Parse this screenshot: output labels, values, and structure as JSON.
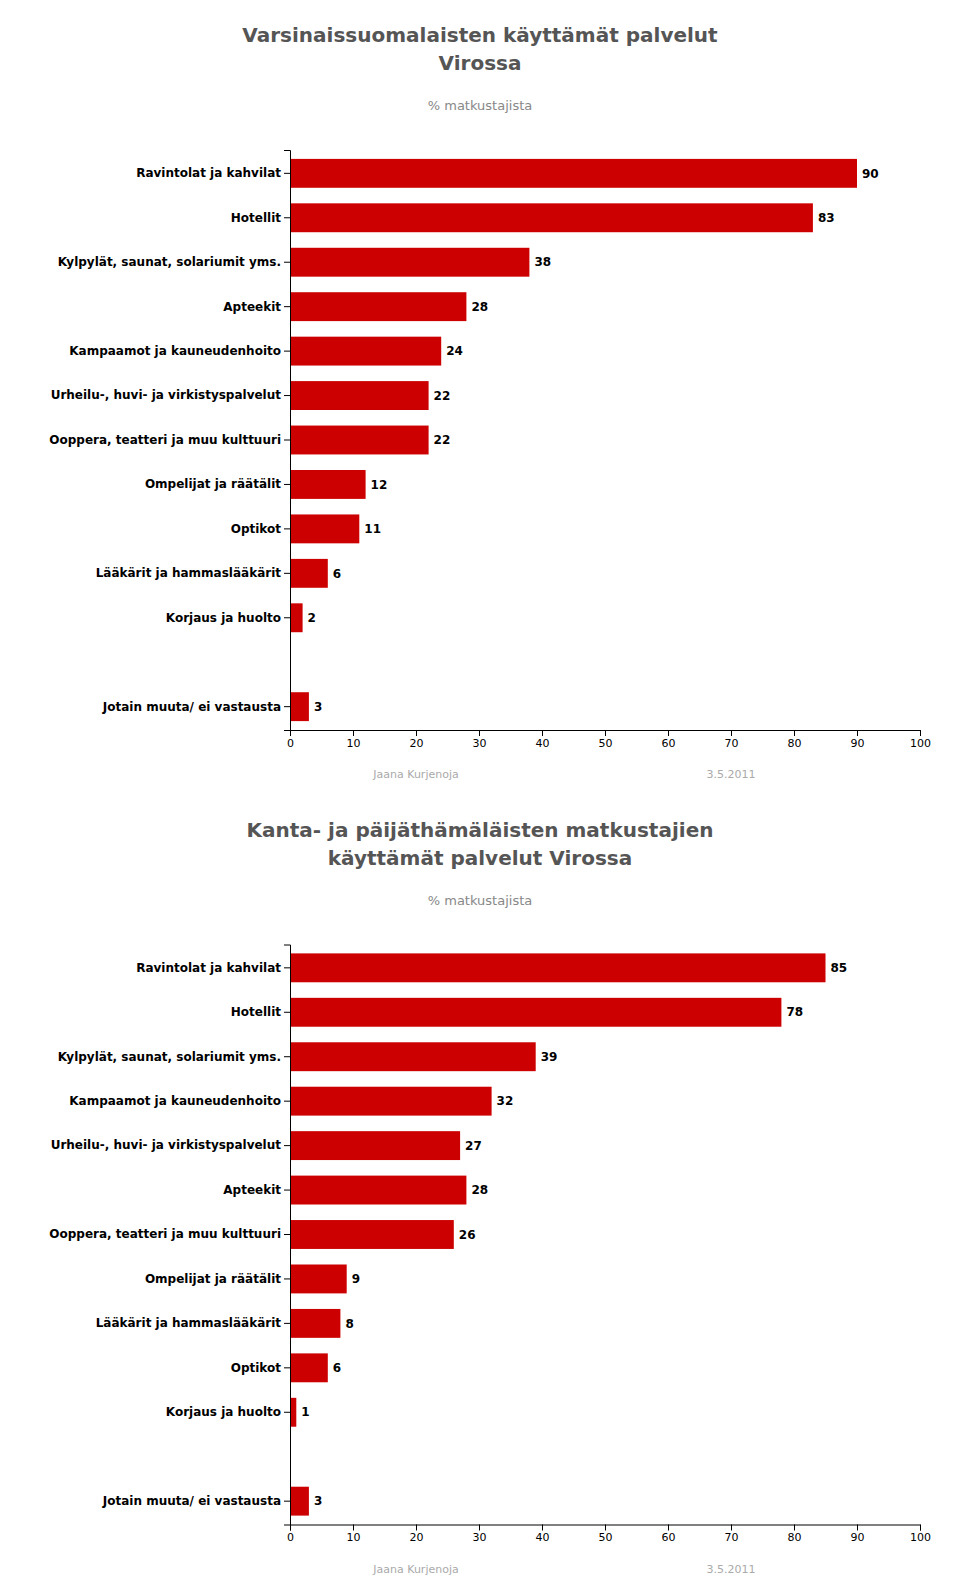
{
  "chart_data": [
    {
      "type": "bar",
      "orientation": "horizontal",
      "title": [
        "Varsinaissuomalaisten käyttämät palvelut",
        "Virossa"
      ],
      "subtitle": "% matkustajista",
      "categories": [
        "Ravintolat ja kahvilat",
        "Hotellit",
        "Kylpylät, saunat, solariumit yms.",
        "Apteekit",
        "Kampaamot ja kauneudenhoito",
        "Urheilu-, huvi- ja virkistyspalvelut",
        "Ooppera, teatteri ja muu kulttuuri",
        "Ompelijat ja räätälit",
        "Optikot",
        "Lääkärit ja hammaslääkärit",
        "Korjaus ja huolto",
        "Jotain muuta/ ei vastausta"
      ],
      "values": [
        90,
        83,
        38,
        28,
        24,
        22,
        22,
        12,
        11,
        6,
        2,
        3
      ],
      "color": "#cc0000",
      "xlim": [
        0,
        100
      ],
      "xticks": [
        0,
        10,
        20,
        30,
        40,
        50,
        60,
        70,
        80,
        90,
        100
      ],
      "grid": false,
      "data_labels": true,
      "annotations": [
        "Jaana Kurjenoja",
        "3.5.2011"
      ]
    },
    {
      "type": "bar",
      "orientation": "horizontal",
      "title": [
        "Kanta- ja päijäthämäläisten matkustajien",
        "käyttämät palvelut Virossa"
      ],
      "subtitle": "% matkustajista",
      "categories": [
        "Ravintolat ja kahvilat",
        "Hotellit",
        "Kylpylät, saunat, solariumit yms.",
        "Kampaamot ja kauneudenhoito",
        "Urheilu-, huvi- ja virkistyspalvelut",
        "Apteekit",
        "Ooppera, teatteri ja muu kulttuuri",
        "Ompelijat ja räätälit",
        "Lääkärit ja hammaslääkärit",
        "Optikot",
        "Korjaus ja huolto",
        "Jotain muuta/ ei vastausta"
      ],
      "values": [
        85,
        78,
        39,
        32,
        27,
        28,
        26,
        9,
        8,
        6,
        1,
        3
      ],
      "color": "#cc0000",
      "xlim": [
        0,
        100
      ],
      "xticks": [
        0,
        10,
        20,
        30,
        40,
        50,
        60,
        70,
        80,
        90,
        100
      ],
      "grid": false,
      "data_labels": true,
      "annotations": [
        "Jaana Kurjenoja",
        "3.5.2011"
      ]
    }
  ]
}
